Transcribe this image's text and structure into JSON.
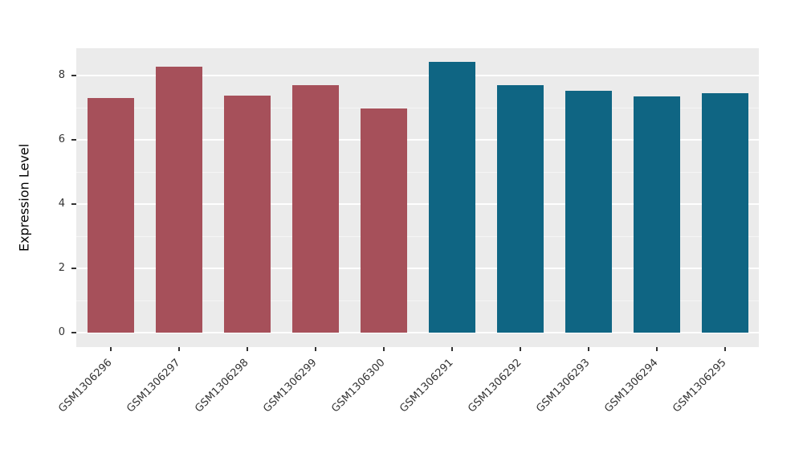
{
  "chart_data": {
    "type": "bar",
    "title": "",
    "ylabel": "Expression Level",
    "xlabel": "",
    "categories": [
      "GSM1306296",
      "GSM1306297",
      "GSM1306298",
      "GSM1306299",
      "GSM1306300",
      "GSM1306291",
      "GSM1306292",
      "GSM1306293",
      "GSM1306294",
      "GSM1306295"
    ],
    "values": [
      7.3,
      8.28,
      7.38,
      7.7,
      6.97,
      8.42,
      7.7,
      7.52,
      7.36,
      7.45
    ],
    "bar_colors": [
      "#A6505A",
      "#A6505A",
      "#A6505A",
      "#A6505A",
      "#A6505A",
      "#0F6583",
      "#0F6583",
      "#0F6583",
      "#0F6583",
      "#0F6583"
    ],
    "group_colors": {
      "left_group": "#A6505A",
      "right_group": "#0F6583"
    },
    "ylim": [
      -0.45,
      8.85
    ],
    "yticks": [
      0,
      2,
      4,
      6,
      8
    ],
    "minor_yticks": [
      1,
      3,
      5,
      7
    ],
    "grid": true,
    "legend": "none",
    "panel_bg": "#EBEBEB",
    "grid_color": "#FFFFFF",
    "tick_label_color": "#333333",
    "axis_title_color": "#000000"
  }
}
